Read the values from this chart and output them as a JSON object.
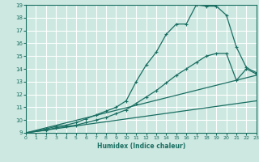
{
  "xlabel": "Humidex (Indice chaleur)",
  "xlim": [
    0,
    23
  ],
  "ylim": [
    9,
    19
  ],
  "xticks": [
    0,
    1,
    2,
    3,
    4,
    5,
    6,
    7,
    8,
    9,
    10,
    11,
    12,
    13,
    14,
    15,
    16,
    17,
    18,
    19,
    20,
    21,
    22,
    23
  ],
  "yticks": [
    9,
    10,
    11,
    12,
    13,
    14,
    15,
    16,
    17,
    18,
    19
  ],
  "bg_color": "#cce8e0",
  "grid_color": "#ffffff",
  "line_color": "#1a6e62",
  "line1_x": [
    0,
    2,
    3,
    4,
    5,
    6,
    7,
    8,
    9,
    10,
    11,
    12,
    13,
    14,
    15,
    16,
    17,
    18,
    19,
    20,
    21,
    22,
    23
  ],
  "line1_y": [
    9,
    9.3,
    9.5,
    9.6,
    9.8,
    10.1,
    10.4,
    10.7,
    11.0,
    11.5,
    13.0,
    14.3,
    15.3,
    16.7,
    17.5,
    17.5,
    19.0,
    18.9,
    18.9,
    18.2,
    15.7,
    14.1,
    13.7
  ],
  "line2_x": [
    0,
    2,
    3,
    4,
    5,
    6,
    7,
    8,
    9,
    10,
    11,
    12,
    13,
    14,
    15,
    16,
    17,
    18,
    19,
    20,
    21,
    22,
    23
  ],
  "line2_y": [
    9,
    9.2,
    9.4,
    9.5,
    9.6,
    9.8,
    10.0,
    10.2,
    10.5,
    10.8,
    11.3,
    11.8,
    12.3,
    12.9,
    13.5,
    14.0,
    14.5,
    15.0,
    15.2,
    15.2,
    13.1,
    14.0,
    13.6
  ],
  "line3_x": [
    0,
    23
  ],
  "line3_y": [
    9,
    13.5
  ],
  "line4_x": [
    0,
    23
  ],
  "line4_y": [
    9,
    11.5
  ]
}
